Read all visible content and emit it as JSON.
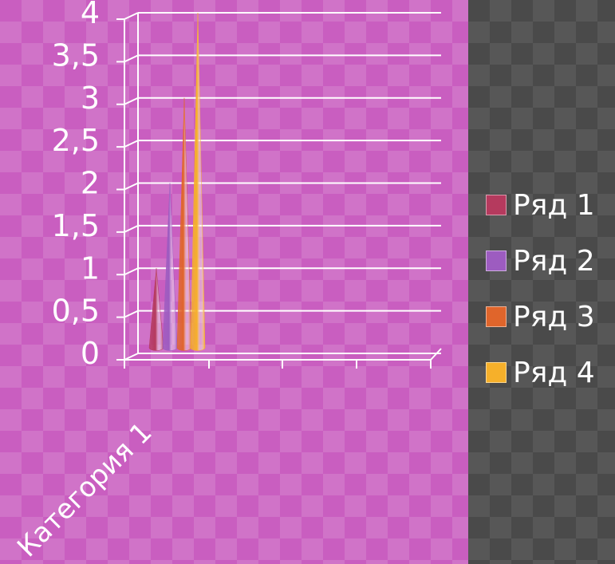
{
  "chart_data": {
    "type": "bar",
    "subtype": "3d-cone",
    "categories": [
      "Категория 1"
    ],
    "series": [
      {
        "name": "Ряд 1",
        "values": [
          1
        ],
        "color": "#b53a5e"
      },
      {
        "name": "Ряд 2",
        "values": [
          2
        ],
        "color": "#9d5cc0"
      },
      {
        "name": "Ряд 3",
        "values": [
          3
        ],
        "color": "#e0652b"
      },
      {
        "name": "Ряд 4",
        "values": [
          4
        ],
        "color": "#f6b02a"
      }
    ],
    "ylim": [
      0,
      4
    ],
    "yticks": [
      "0",
      "0,5",
      "1",
      "1,5",
      "2",
      "2,5",
      "3",
      "3,5",
      "4"
    ],
    "grid": true,
    "legend_position": "right"
  },
  "colors": {
    "plot_background": "#c95ec0",
    "legend_background": "#4a4a4a",
    "text": "#ffffff"
  }
}
